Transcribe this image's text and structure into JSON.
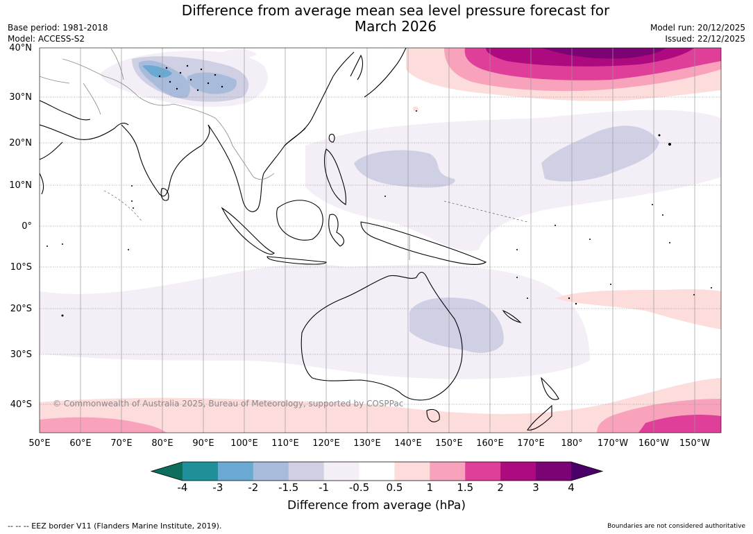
{
  "header": {
    "title": "Difference from average mean sea level pressure forecast for\nMarch 2026",
    "base_period": "Base period: 1981-2018",
    "model": "Model: ACCESS-S2",
    "model_run": "Model run: 20/12/2025",
    "issued": "Issued: 22/12/2025"
  },
  "map": {
    "copyright": "© Commonwealth of Australia 2025, Bureau of Meteorology, supported by COSPPac",
    "lat_labels": [
      "40°N",
      "30°N",
      "20°N",
      "10°N",
      "0°",
      "10°S",
      "20°S",
      "30°S",
      "40°S"
    ],
    "lon_labels": [
      "50°E",
      "60°E",
      "70°E",
      "80°E",
      "90°E",
      "100°E",
      "110°E",
      "120°E",
      "130°E",
      "140°E",
      "150°E",
      "160°E",
      "170°E",
      "180°",
      "170°W",
      "160°W",
      "150°W"
    ]
  },
  "colorbar": {
    "label": "Difference from average (hPa)",
    "ticks": [
      "-4",
      "-3",
      "-2",
      "-1.5",
      "-1",
      "-0.5",
      "0.5",
      "1",
      "1.5",
      "2",
      "3",
      "4"
    ],
    "colors": [
      "#0d6e60",
      "#1f8f99",
      "#6aa9d2",
      "#a9bbdb",
      "#cfd0e4",
      "#f4eef6",
      "#ffffff",
      "#fddcdc",
      "#f8a2bc",
      "#df3f99",
      "#ad0a7f",
      "#7c0373",
      "#4a0068"
    ]
  },
  "footer": {
    "eez": "--  --  -- EEZ border V11 (Flanders Marine Institute, 2019).",
    "disclaimer": "Boundaries are not considered authoritative"
  }
}
